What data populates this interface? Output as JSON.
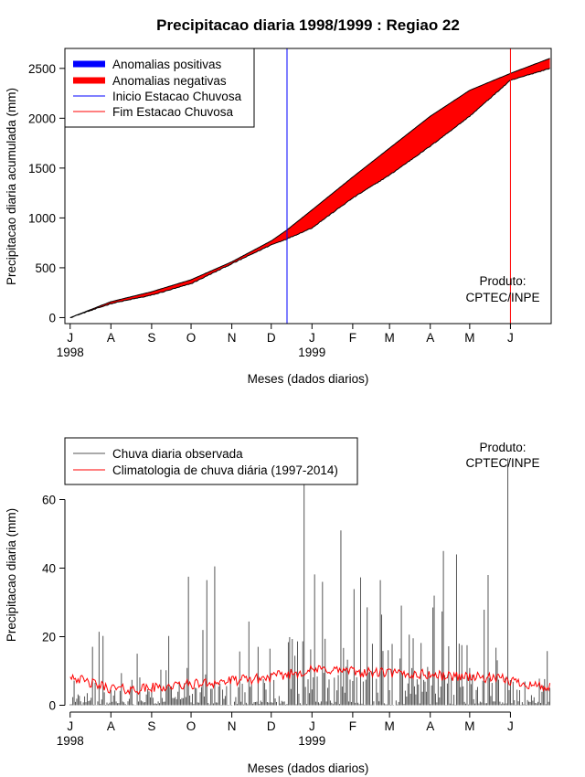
{
  "figure": {
    "title": "Precipitacao diaria 1998/1999 : Regiao 22",
    "credit": [
      "Produto:",
      "CPTEC/INPE"
    ]
  },
  "chart_data": [
    {
      "type": "area",
      "title": "Precipitacao diaria 1998/1999 : Regiao 22",
      "xlabel": "Meses (dados diarios)",
      "ylabel": "Precipitacao diaria acumulada (mm)",
      "xlim": [
        -4,
        366
      ],
      "ylim": [
        -60,
        2700
      ],
      "xticks": [
        "J",
        "A",
        "S",
        "O",
        "N",
        "D",
        "J",
        "F",
        "M",
        "A",
        "M",
        "J"
      ],
      "xtick_days": [
        0,
        31,
        62,
        92,
        123,
        153,
        184,
        215,
        243,
        274,
        304,
        335
      ],
      "year_labels": [
        {
          "label": "1998",
          "day": 0
        },
        {
          "label": "1999",
          "day": 184
        }
      ],
      "yticks": [
        0,
        500,
        1000,
        1500,
        2000,
        2500
      ],
      "legend": [
        "Anomalias positivas",
        "Anomalias negativas",
        "Inicio Estacao Chuvosa",
        "Fim Estacao Chuvosa"
      ],
      "legend_colors": [
        "#0000ff",
        "#ff0000",
        "#0000ff",
        "#ff0000"
      ],
      "rainy_season_start_day": 165,
      "rainy_season_end_day": 335,
      "climatology_cumulative": {
        "days": [
          0,
          31,
          62,
          92,
          123,
          153,
          165,
          184,
          215,
          243,
          274,
          304,
          335,
          365
        ],
        "values": [
          0,
          160,
          260,
          380,
          560,
          770,
          880,
          1080,
          1410,
          1700,
          2020,
          2280,
          2450,
          2600
        ]
      },
      "observed_cumulative": {
        "days": [
          0,
          31,
          62,
          92,
          123,
          153,
          165,
          184,
          215,
          243,
          274,
          304,
          335,
          365
        ],
        "values": [
          0,
          140,
          225,
          340,
          540,
          730,
          790,
          900,
          1200,
          1430,
          1720,
          2020,
          2380,
          2500
        ]
      }
    },
    {
      "type": "bar",
      "xlabel": "Meses (dados diarios)",
      "ylabel": "Precipitacao diaria (mm)",
      "xlim": [
        -4,
        366
      ],
      "ylim": [
        -2,
        78
      ],
      "yticks": [
        0,
        20,
        40,
        60
      ],
      "xticks": [
        "J",
        "A",
        "S",
        "O",
        "N",
        "D",
        "J",
        "F",
        "M",
        "A",
        "M",
        "J"
      ],
      "xtick_days": [
        0,
        31,
        62,
        92,
        123,
        153,
        184,
        215,
        243,
        274,
        304,
        335
      ],
      "year_labels": [
        {
          "label": "1998",
          "day": 0
        },
        {
          "label": "1999",
          "day": 184
        }
      ],
      "legend": [
        "Chuva diaria observada",
        "Climatologia de chuva diária (1997-2014)"
      ],
      "legend_colors": [
        "#555555",
        "#ff0000"
      ],
      "climatology_curve": {
        "days": [
          0,
          10,
          20,
          30,
          45,
          60,
          75,
          90,
          105,
          120,
          135,
          150,
          165,
          180,
          195,
          210,
          225,
          240,
          255,
          270,
          285,
          300,
          315,
          330,
          345,
          365
        ],
        "values": [
          9,
          7,
          6,
          5,
          4.5,
          5,
          5.5,
          6,
          6.5,
          7,
          7.5,
          8,
          9,
          10,
          10.5,
          10,
          9.5,
          9.5,
          9,
          9,
          8.5,
          8.5,
          8,
          7.5,
          6.5,
          5
        ]
      },
      "notable_peaks": [
        {
          "day": 90,
          "value": 37.5
        },
        {
          "day": 104,
          "value": 36.5
        },
        {
          "day": 110,
          "value": 40.5
        },
        {
          "day": 178,
          "value": 66
        },
        {
          "day": 192,
          "value": 36
        },
        {
          "day": 206,
          "value": 51
        },
        {
          "day": 236,
          "value": 36.5
        },
        {
          "day": 284,
          "value": 45
        },
        {
          "day": 294,
          "value": 44
        },
        {
          "day": 318,
          "value": 38
        },
        {
          "day": 333,
          "value": 72
        }
      ]
    }
  ]
}
